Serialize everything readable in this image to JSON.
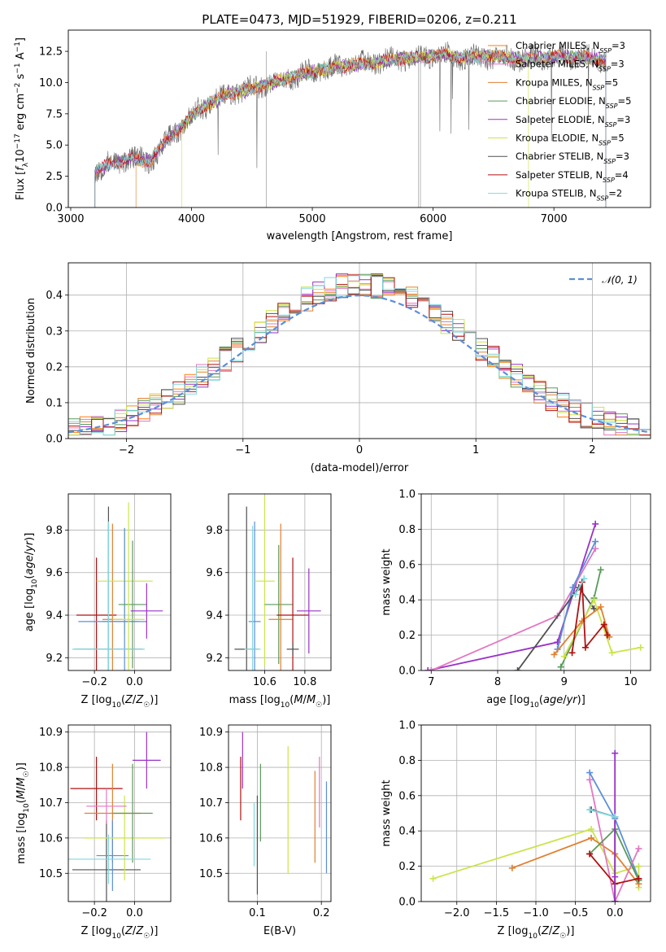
{
  "figure": {
    "title": "PLATE=0473, MJD=51929, FIBERID=0206, z=0.211"
  },
  "colors": {
    "chabrier_miles": "#ff7f0e",
    "salpeter_miles": "#e377c2",
    "kroupa_miles": "#e08030",
    "chabrier_elodie": "#5a9a5a",
    "salpeter_elodie": "#9b30c8",
    "kroupa_elodie": "#cbe44a",
    "chabrier_stelib": "#505050",
    "salpeter_stelib": "#b01010",
    "kroupa_stelib": "#80d8e0",
    "normal": "#5b8fd9",
    "blue_model": "#5b8fd9",
    "purple_model": "#8e24aa",
    "grid": "#b0b0b0"
  },
  "chart_data": [
    {
      "id": "spectrum",
      "type": "line",
      "title": "PLATE=0473, MJD=51929, FIBERID=0206, z=0.211",
      "xlabel": "wavelength [Angstrom, rest frame]",
      "ylabel": "Flux [f_λ 10^-17 erg cm^-2 s^-1 A^-1]",
      "xlim": [
        2980,
        7800
      ],
      "ylim": [
        0,
        14.2
      ],
      "xticks": [
        "3000",
        "4000",
        "5000",
        "6000",
        "7000"
      ],
      "yticks": [
        "0.0",
        "2.5",
        "5.0",
        "7.5",
        "10.0",
        "12.5"
      ],
      "legend_position": "upper right",
      "series": [
        {
          "name": "Chabrier MILES, N_SSP=3",
          "color": "#ff7f0e"
        },
        {
          "name": "Salpeter MILES, N_SSP=3",
          "color": "#e377c2"
        },
        {
          "name": "Kroupa MILES, N_SSP=5",
          "color": "#e08030"
        },
        {
          "name": "Chabrier ELODIE, N_SSP=5",
          "color": "#5a9a5a"
        },
        {
          "name": "Salpeter ELODIE, N_SSP=3",
          "color": "#9b30c8"
        },
        {
          "name": "Kroupa ELODIE, N_SSP=5",
          "color": "#cbe44a"
        },
        {
          "name": "Chabrier STELIB, N_SSP=3",
          "color": "#505050"
        },
        {
          "name": "Salpeter STELIB, N_SSP=4",
          "color": "#b01010"
        },
        {
          "name": "Kroupa STELIB, N_SSP=2",
          "color": "#80d8e0"
        }
      ],
      "continuum": {
        "x": [
          3200,
          3350,
          3500,
          3650,
          3800,
          3950,
          4050,
          4150,
          4300,
          4500,
          4700,
          4900,
          5000,
          5150,
          5300,
          5500,
          5700,
          5900,
          6100,
          6300,
          6500,
          6700,
          6900,
          7100,
          7300,
          7430
        ],
        "y": [
          2.9,
          3.6,
          3.9,
          3.7,
          5.4,
          6.8,
          7.8,
          8.3,
          9.1,
          9.5,
          10.1,
          10.6,
          10.9,
          11.1,
          11.4,
          11.6,
          11.9,
          12.0,
          12.2,
          12.0,
          12.1,
          11.9,
          12.0,
          12.1,
          12.0,
          11.8
        ]
      },
      "starts": {
        "x": [
          3200,
          3540,
          3920,
          6790,
          7420
        ],
        "y_start": [
          0,
          0,
          0,
          0,
          0
        ]
      }
    },
    {
      "id": "residuals",
      "type": "histogram",
      "xlabel": "(data-model)/error",
      "ylabel": "Normed distribution",
      "xlim": [
        -2.5,
        2.5
      ],
      "ylim": [
        0,
        0.49
      ],
      "xticks": [
        "−2",
        "−1",
        "0",
        "1",
        "2"
      ],
      "yticks": [
        "0.0",
        "0.1",
        "0.2",
        "0.3",
        "0.4"
      ],
      "legend": [
        "𝒩(0, 1)"
      ],
      "bin_width": 0.1
    },
    {
      "id": "age_vs_Z",
      "type": "errorbar",
      "xlabel": "Z [log10(Z/Z☉)]",
      "ylabel": "age [log10(age/yr)]",
      "xlim": [
        -0.33,
        0.18
      ],
      "ylim": [
        9.14,
        9.97
      ],
      "xticks": [
        "−0.2",
        "0.0"
      ],
      "yticks": [
        "9.2",
        "9.4",
        "9.6",
        "9.8"
      ],
      "points": [
        {
          "x": -0.19,
          "xerr": 0.1,
          "y": 9.4,
          "yerr": 0.27,
          "color": "#b01010"
        },
        {
          "x": -0.13,
          "xerr": 0.17,
          "y": 9.24,
          "yerr": 0.67,
          "color": "#505050"
        },
        {
          "x": -0.13,
          "xerr": 0.15,
          "y": 9.37,
          "yerr": 0.45,
          "color": "#5b8fd9"
        },
        {
          "x": -0.11,
          "xerr": 0.05,
          "y": 9.38,
          "yerr": 0.45,
          "color": "#e08030"
        },
        {
          "x": -0.05,
          "xerr": 0.14,
          "y": 9.56,
          "yerr": 0.25,
          "color": "#cbe44a"
        },
        {
          "x": -0.05,
          "xerr": 0.11,
          "y": 9.37,
          "yerr": 0.44,
          "color": "#5b8fd9"
        },
        {
          "x": -0.01,
          "xerr": 0.07,
          "y": 9.45,
          "yerr": 0.3,
          "color": "#5a9a5a"
        },
        {
          "x": 0.06,
          "xerr": 0.08,
          "y": 9.42,
          "yerr": 0.13,
          "color": "#9b30c8"
        },
        {
          "x": -0.13,
          "xerr": 0.18,
          "y": 9.24,
          "yerr": 0.6,
          "color": "#80d8e0"
        },
        {
          "x": -0.03,
          "xerr": 0.08,
          "y": 9.38,
          "yerr": 0.55,
          "color": "#cbe44a"
        }
      ]
    },
    {
      "id": "age_vs_mass",
      "type": "errorbar",
      "xlabel": "mass [log10(M/M☉)]",
      "ylabel": "",
      "xlim": [
        10.42,
        10.93
      ],
      "ylim": [
        9.14,
        9.97
      ],
      "xticks": [
        "10.6",
        "10.8"
      ],
      "yticks": [
        "9.2",
        "9.4",
        "9.6",
        "9.8"
      ],
      "points": [
        {
          "x": 10.51,
          "xerr": 0.06,
          "y": 9.24,
          "yerr": 0.67,
          "color": "#505050"
        },
        {
          "x": 10.55,
          "xerr": 0.03,
          "y": 9.37,
          "yerr": 0.47,
          "color": "#5b8fd9"
        },
        {
          "x": 10.54,
          "xerr": 0.04,
          "y": 9.24,
          "yerr": 0.58,
          "color": "#80d8e0"
        },
        {
          "x": 10.6,
          "xerr": 0.05,
          "y": 9.56,
          "yerr": 0.4,
          "color": "#cbe44a"
        },
        {
          "x": 10.67,
          "xerr": 0.07,
          "y": 9.45,
          "yerr": 0.28,
          "color": "#5a9a5a"
        },
        {
          "x": 10.68,
          "xerr": 0.06,
          "y": 9.38,
          "yerr": 0.45,
          "color": "#e08030"
        },
        {
          "x": 10.74,
          "xerr": 0.08,
          "y": 9.4,
          "yerr": 0.27,
          "color": "#b01010"
        },
        {
          "x": 10.82,
          "xerr": 0.06,
          "y": 9.42,
          "yerr": 0.2,
          "color": "#9b30c8"
        },
        {
          "x": 10.74,
          "xerr": 0.03,
          "y": 9.24,
          "yerr": 0.03,
          "color": "#505050"
        }
      ]
    },
    {
      "id": "massweight_vs_age",
      "type": "line",
      "xlabel": "age [log10(age/yr)]",
      "ylabel": "mass weight",
      "xlim": [
        6.85,
        10.3
      ],
      "ylim": [
        0,
        1
      ],
      "xticks": [
        "7",
        "8",
        "9",
        "10"
      ],
      "yticks": [
        "0.0",
        "0.2",
        "0.4",
        "0.6",
        "0.8",
        "1.0"
      ],
      "series": [
        {
          "color": "#9b30c8",
          "x": [
            6.95,
            8.9,
            9.47
          ],
          "y": [
            0.0,
            0.16,
            0.83
          ]
        },
        {
          "color": "#e377c2",
          "x": [
            7.0,
            8.9,
            9.47
          ],
          "y": [
            0.0,
            0.31,
            0.69
          ]
        },
        {
          "color": "#5b8fd9",
          "x": [
            8.9,
            9.13,
            9.47
          ],
          "y": [
            0.12,
            0.47,
            0.73
          ]
        },
        {
          "color": "#505050",
          "x": [
            8.3,
            9.22,
            9.45
          ],
          "y": [
            0.0,
            0.47,
            0.35
          ]
        },
        {
          "color": "#5a9a5a",
          "x": [
            8.95,
            9.45,
            9.55
          ],
          "y": [
            0.02,
            0.41,
            0.57
          ]
        },
        {
          "color": "#cbe44a",
          "x": [
            9.0,
            9.45,
            9.72,
            10.15
          ],
          "y": [
            0.08,
            0.4,
            0.1,
            0.13
          ]
        },
        {
          "color": "#e08030",
          "x": [
            8.85,
            9.27,
            9.55,
            9.68
          ],
          "y": [
            0.09,
            0.28,
            0.36,
            0.19
          ]
        },
        {
          "color": "#b01010",
          "x": [
            9.12,
            9.27,
            9.32,
            9.6,
            9.65
          ],
          "y": [
            0.1,
            0.5,
            0.13,
            0.26,
            0.2
          ]
        },
        {
          "color": "#80d8e0",
          "x": [
            9.17,
            9.3
          ],
          "y": [
            0.43,
            0.52
          ]
        }
      ]
    },
    {
      "id": "mass_vs_Z",
      "type": "errorbar",
      "xlabel": "Z [log10(Z/Z☉)]",
      "ylabel": "mass [log10(M/M☉)]",
      "xlim": [
        -0.33,
        0.18
      ],
      "ylim": [
        10.42,
        10.92
      ],
      "xticks": [
        "−0.2",
        "0.0"
      ],
      "yticks": [
        "10.5",
        "10.6",
        "10.7",
        "10.8",
        "10.9"
      ],
      "points": [
        {
          "x": -0.19,
          "xerr": 0.13,
          "y": 10.74,
          "yerr": 0.09,
          "color": "#b01010"
        },
        {
          "x": -0.14,
          "xerr": 0.17,
          "y": 10.51,
          "yerr": 0.14,
          "color": "#505050"
        },
        {
          "x": -0.11,
          "xerr": 0.14,
          "y": 10.67,
          "yerr": 0.14,
          "color": "#e08030"
        },
        {
          "x": -0.11,
          "xerr": 0.08,
          "y": 10.55,
          "yerr": 0.1,
          "color": "#5b8fd9"
        },
        {
          "x": -0.05,
          "xerr": 0.2,
          "y": 10.6,
          "yerr": 0.12,
          "color": "#cbe44a"
        },
        {
          "x": -0.01,
          "xerr": 0.1,
          "y": 10.67,
          "yerr": 0.14,
          "color": "#5a9a5a"
        },
        {
          "x": 0.06,
          "xerr": 0.07,
          "y": 10.82,
          "yerr": 0.08,
          "color": "#9b30c8"
        },
        {
          "x": -0.13,
          "xerr": 0.21,
          "y": 10.54,
          "yerr": 0.07,
          "color": "#80d8e0"
        },
        {
          "x": -0.14,
          "xerr": 0.1,
          "y": 10.69,
          "yerr": 0.05,
          "color": "#e377c2"
        }
      ]
    },
    {
      "id": "mass_vs_ebv",
      "type": "errorbar",
      "xlabel": "E(B-V)",
      "ylabel": "",
      "xlim": [
        0.055,
        0.215
      ],
      "ylim": [
        10.42,
        10.92
      ],
      "xticks": [
        "0.1",
        "0.2"
      ],
      "yticks": [
        "10.5",
        "10.6",
        "10.7",
        "10.8",
        "10.9"
      ],
      "points": [
        {
          "x": 0.074,
          "yerr": 0.09,
          "y": 10.74,
          "color": "#b01010"
        },
        {
          "x": 0.077,
          "yerr": 0.08,
          "y": 10.82,
          "color": "#9b30c8"
        },
        {
          "x": 0.095,
          "yerr": 0.09,
          "y": 10.61,
          "color": "#80d8e0"
        },
        {
          "x": 0.1,
          "yerr": 0.14,
          "y": 10.58,
          "color": "#505050"
        },
        {
          "x": 0.105,
          "yerr": 0.11,
          "y": 10.7,
          "color": "#5a9a5a"
        },
        {
          "x": 0.148,
          "yerr": 0.18,
          "y": 10.68,
          "color": "#cbe44a"
        },
        {
          "x": 0.19,
          "yerr": 0.13,
          "y": 10.66,
          "color": "#e08030"
        },
        {
          "x": 0.197,
          "yerr": 0.1,
          "y": 10.73,
          "color": "#e377c2"
        },
        {
          "x": 0.208,
          "yerr": 0.13,
          "y": 10.63,
          "color": "#5b8fd9"
        }
      ]
    },
    {
      "id": "massweight_vs_Z",
      "type": "line",
      "xlabel": "Z [log10(Z/Z☉)]",
      "ylabel": "mass weight",
      "xlim": [
        -2.45,
        0.45
      ],
      "ylim": [
        0,
        1
      ],
      "xticks": [
        "−2.0",
        "−1.5",
        "−1.0",
        "−0.5",
        "0.0"
      ],
      "yticks": [
        "0.0",
        "0.2",
        "0.4",
        "0.6",
        "0.8",
        "1.0"
      ],
      "series": [
        {
          "color": "#cbe44a",
          "x": [
            -2.3,
            -0.3,
            0.0,
            0.3,
            0.3
          ],
          "y": [
            0.13,
            0.41,
            0.16,
            0.2,
            0.08
          ]
        },
        {
          "color": "#e08030",
          "x": [
            -1.3,
            -0.3,
            0.0,
            0.3
          ],
          "y": [
            0.19,
            0.36,
            0.27,
            0.1
          ]
        },
        {
          "color": "#5b8fd9",
          "x": [
            -0.32,
            0.0,
            0.3
          ],
          "y": [
            0.73,
            0.47,
            0.13
          ]
        },
        {
          "color": "#e377c2",
          "x": [
            -0.32,
            0.0,
            0.3
          ],
          "y": [
            0.69,
            0.0,
            0.3
          ]
        },
        {
          "color": "#5a9a5a",
          "x": [
            -0.32,
            0.0,
            0.3
          ],
          "y": [
            0.27,
            0.41,
            0.12
          ]
        },
        {
          "color": "#505050",
          "x": [
            -0.3,
            0.0,
            0.0
          ],
          "y": [
            0.52,
            0.48,
            0.0
          ]
        },
        {
          "color": "#b01010",
          "x": [
            -0.32,
            0.0,
            0.3
          ],
          "y": [
            0.27,
            0.1,
            0.13
          ]
        },
        {
          "color": "#9b30c8",
          "x": [
            0.0,
            0.0,
            0.0
          ],
          "y": [
            0.84,
            0.14,
            0.0
          ]
        },
        {
          "color": "#80d8e0",
          "x": [
            -0.32,
            0.0
          ],
          "y": [
            0.52,
            0.48
          ]
        }
      ]
    }
  ]
}
